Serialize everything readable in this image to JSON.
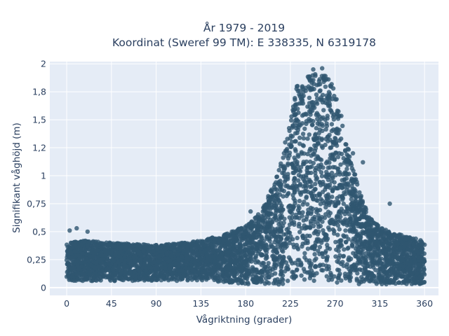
{
  "chart_data": {
    "type": "scatter",
    "title": "År 1979 - 2019",
    "subtitle": "Koordinat (Sweref 99 TM): E 338335, N 6319178",
    "xlabel": "Vågriktning (grader)",
    "ylabel": "Signifikant våghöjd (m)",
    "xlim": [
      -17,
      374
    ],
    "ylim": [
      -0.07,
      2.02
    ],
    "x_ticks": [
      0,
      45,
      90,
      135,
      180,
      225,
      270,
      315,
      360
    ],
    "x_tick_labels": [
      "0",
      "45",
      "90",
      "135",
      "180",
      "225",
      "270",
      "315",
      "360"
    ],
    "y_ticks": [
      0,
      0.25,
      0.5,
      0.75,
      1,
      1.25,
      1.5,
      1.75,
      2
    ],
    "y_tick_labels": [
      "0",
      "0,25",
      "0,5",
      "0,75",
      "1",
      "1,2",
      "1,5",
      "1,8",
      "2"
    ],
    "grid": true,
    "background_color": "#e5ecf6",
    "marker_color": "#2f5670",
    "density_profile": {
      "x": [
        0,
        20,
        45,
        90,
        135,
        160,
        180,
        195,
        210,
        225,
        232,
        240,
        250,
        260,
        268,
        275,
        285,
        295,
        305,
        320,
        340,
        360
      ],
      "y_min": [
        0.06,
        0.06,
        0.06,
        0.06,
        0.06,
        0.04,
        0.03,
        0.02,
        0.02,
        0.04,
        0.05,
        0.06,
        0.06,
        0.06,
        0.05,
        0.04,
        0.03,
        0.02,
        0.02,
        0.03,
        0.03,
        0.03
      ],
      "y_max": [
        0.4,
        0.42,
        0.4,
        0.38,
        0.42,
        0.48,
        0.55,
        0.68,
        0.95,
        1.5,
        1.82,
        1.9,
        1.92,
        1.9,
        1.82,
        1.6,
        1.18,
        0.85,
        0.62,
        0.52,
        0.46,
        0.42
      ]
    },
    "outliers": [
      {
        "x": 10,
        "y": 0.53
      },
      {
        "x": 21,
        "y": 0.5
      },
      {
        "x": 3,
        "y": 0.51
      },
      {
        "x": 325,
        "y": 0.75
      },
      {
        "x": 298,
        "y": 1.12
      },
      {
        "x": 185,
        "y": 0.68
      },
      {
        "x": 288,
        "y": 1.2
      },
      {
        "x": 257,
        "y": 1.96
      },
      {
        "x": 248,
        "y": 1.95
      }
    ]
  }
}
